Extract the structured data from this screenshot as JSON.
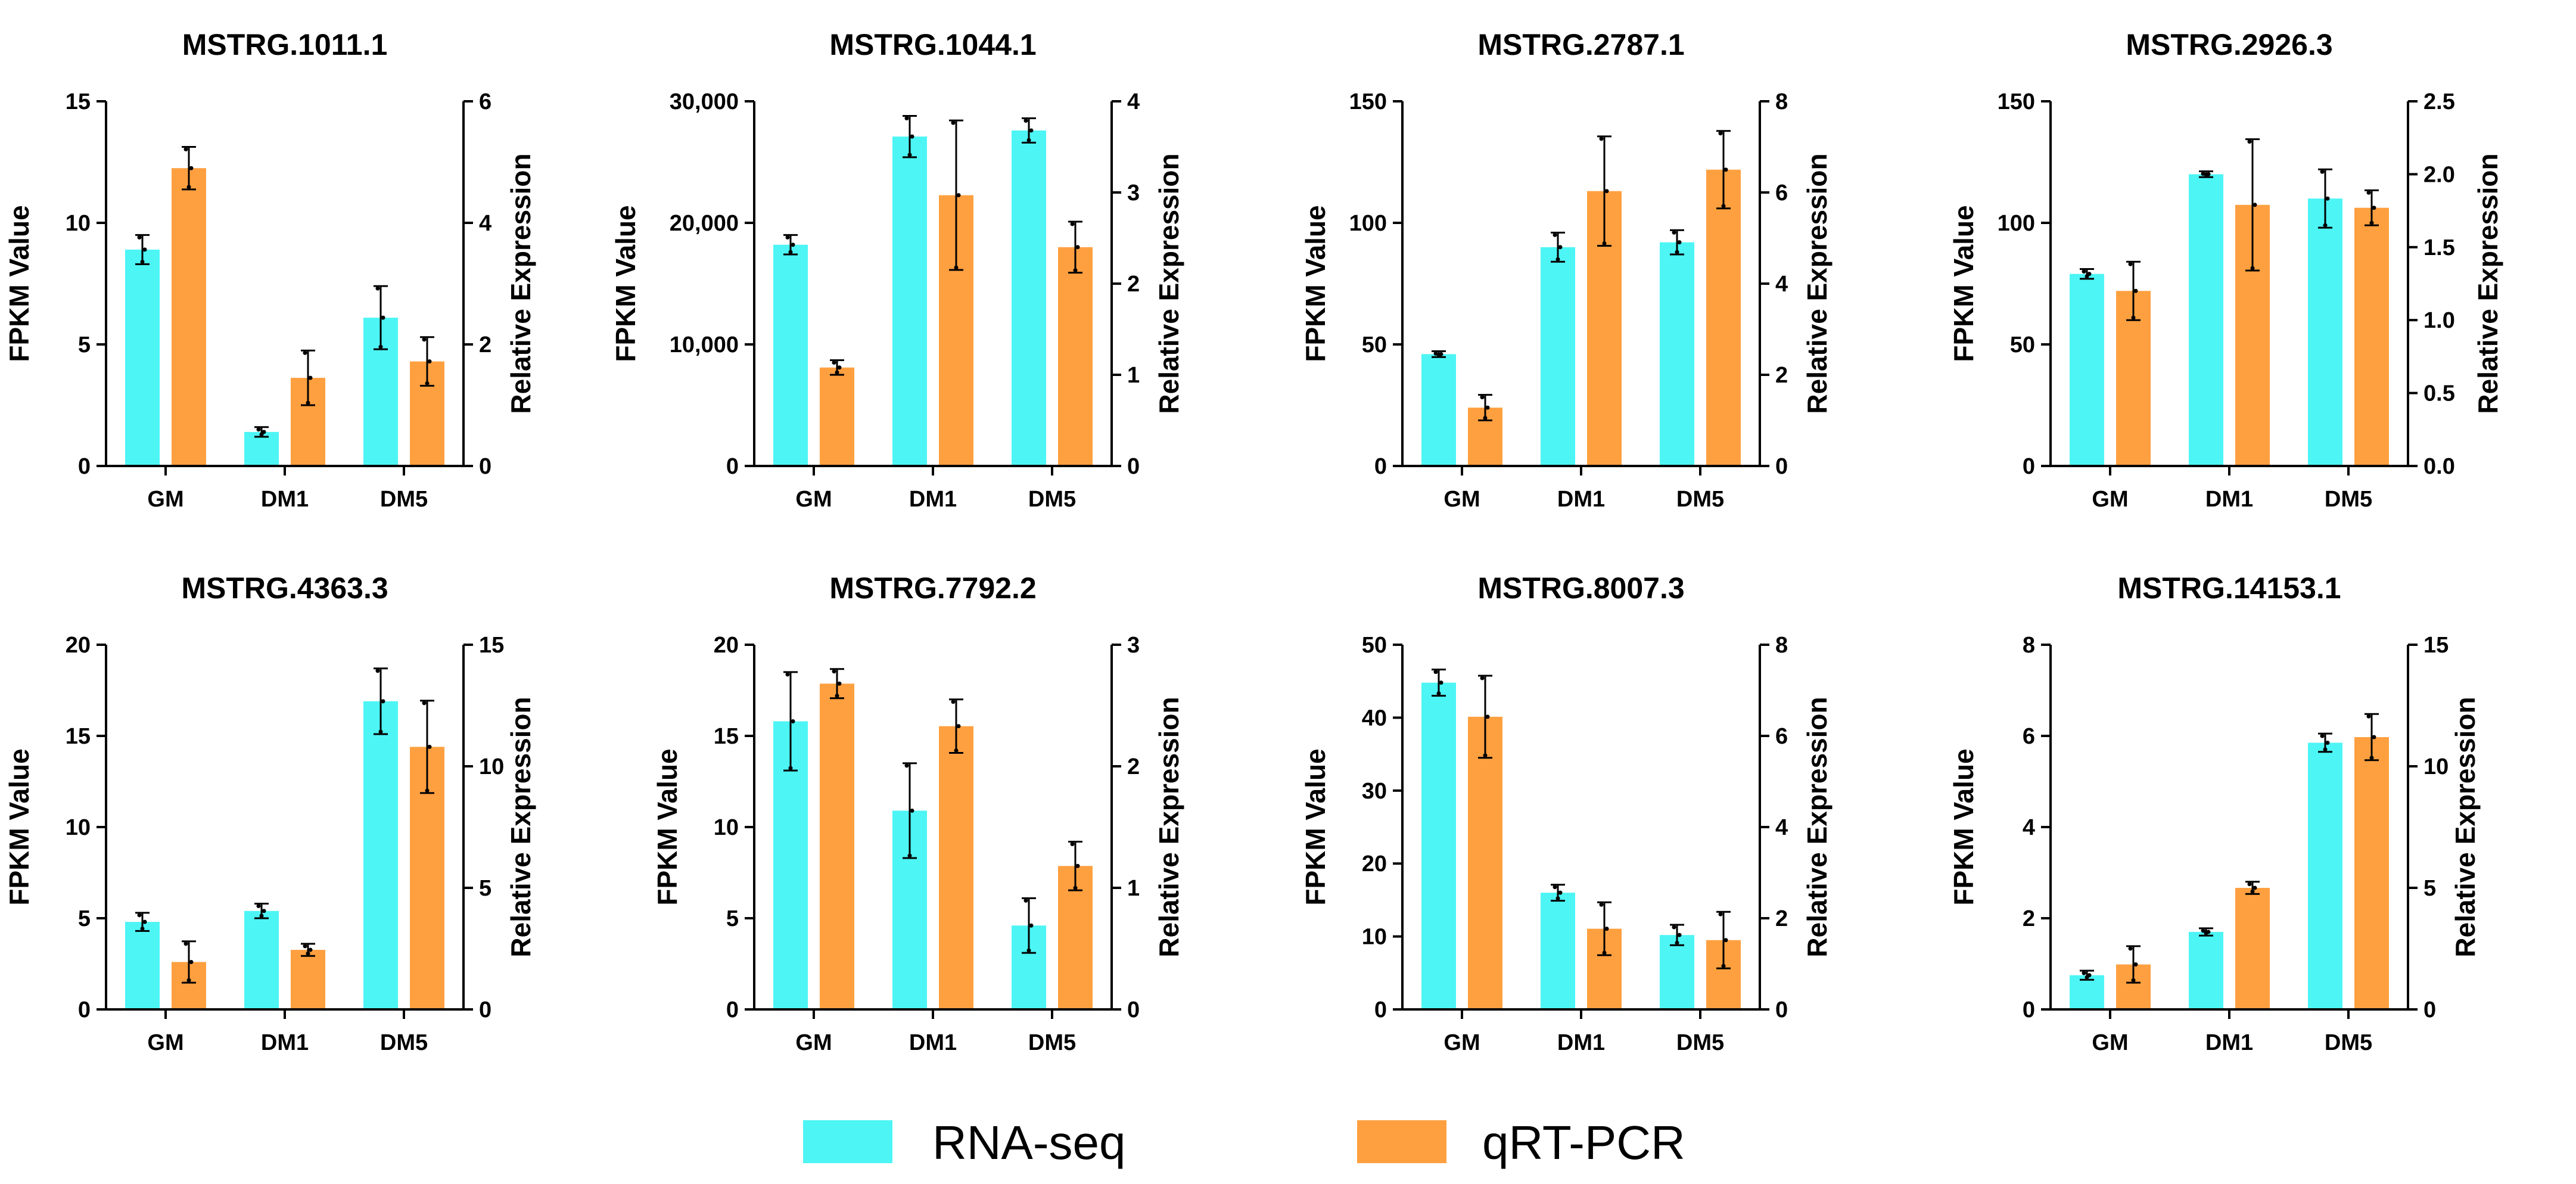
{
  "legend": {
    "rna_label": "RNA-seq",
    "qpcr_label": "qRT-PCR"
  },
  "colors": {
    "rna": "#4DF5F5",
    "qpcr": "#FFA040",
    "axis": "#000000"
  },
  "chart_data": [
    {
      "type": "bar",
      "title": "MSTRG.1011.1",
      "categories": [
        "GM",
        "DM1",
        "DM5"
      ],
      "ylabel": "FPKM Value",
      "y2label": "Relative Expression",
      "ylim": [
        0,
        15
      ],
      "yticks": [
        0,
        5,
        10,
        15
      ],
      "ytick_labels": [
        "0",
        "5",
        "10",
        "15"
      ],
      "y2lim": [
        0,
        6
      ],
      "y2ticks": [
        0,
        2,
        4,
        6
      ],
      "y2tick_labels": [
        "0",
        "2",
        "4",
        "6"
      ],
      "series": [
        {
          "name": "RNA-seq",
          "axis": "left",
          "values": [
            8.9,
            1.4,
            6.1
          ],
          "errors": [
            0.6,
            0.2,
            1.3
          ]
        },
        {
          "name": "qRT-PCR",
          "axis": "right",
          "values": [
            4.9,
            1.45,
            1.72
          ],
          "errors": [
            0.35,
            0.45,
            0.4
          ]
        }
      ]
    },
    {
      "type": "bar",
      "title": "MSTRG.1044.1",
      "categories": [
        "GM",
        "DM1",
        "DM5"
      ],
      "ylabel": "FPKM Value",
      "y2label": "Relative Expression",
      "ylim": [
        0,
        30000
      ],
      "yticks": [
        0,
        10000,
        20000,
        30000
      ],
      "ytick_labels": [
        "0",
        "10,000",
        "20,000",
        "30,000"
      ],
      "y2lim": [
        0,
        4
      ],
      "y2ticks": [
        0,
        1,
        2,
        3,
        4
      ],
      "y2tick_labels": [
        "0",
        "1",
        "2",
        "3",
        "4"
      ],
      "series": [
        {
          "name": "RNA-seq",
          "axis": "left",
          "values": [
            18200,
            27100,
            27600
          ],
          "errors": [
            800,
            1700,
            1000
          ]
        },
        {
          "name": "qRT-PCR",
          "axis": "right",
          "values": [
            1.08,
            2.97,
            2.4
          ],
          "errors": [
            0.08,
            0.82,
            0.28
          ]
        }
      ]
    },
    {
      "type": "bar",
      "title": "MSTRG.2787.1",
      "categories": [
        "GM",
        "DM1",
        "DM5"
      ],
      "ylabel": "FPKM Value",
      "y2label": "Relative Expression",
      "ylim": [
        0,
        150
      ],
      "yticks": [
        0,
        50,
        100,
        150
      ],
      "ytick_labels": [
        "0",
        "50",
        "100",
        "150"
      ],
      "y2lim": [
        0,
        8
      ],
      "y2ticks": [
        0,
        2,
        4,
        6,
        8
      ],
      "y2tick_labels": [
        "0",
        "2",
        "4",
        "6",
        "8"
      ],
      "series": [
        {
          "name": "RNA-seq",
          "axis": "left",
          "values": [
            46,
            90,
            92
          ],
          "errors": [
            1.2,
            6,
            5
          ]
        },
        {
          "name": "qRT-PCR",
          "axis": "right",
          "values": [
            1.28,
            6.03,
            6.5
          ],
          "errors": [
            0.28,
            1.2,
            0.85
          ]
        }
      ]
    },
    {
      "type": "bar",
      "title": "MSTRG.2926.3",
      "categories": [
        "GM",
        "DM1",
        "DM5"
      ],
      "ylabel": "FPKM Value",
      "y2label": "Relative Expression",
      "ylim": [
        0,
        150
      ],
      "yticks": [
        0,
        50,
        100,
        150
      ],
      "ytick_labels": [
        "0",
        "50",
        "100",
        "150"
      ],
      "y2lim": [
        0,
        2.5
      ],
      "y2ticks": [
        0,
        0.5,
        1,
        1.5,
        2,
        2.5
      ],
      "y2tick_labels": [
        "0.0",
        "0.5",
        "1.0",
        "1.5",
        "2.0",
        "2.5"
      ],
      "series": [
        {
          "name": "RNA-seq",
          "axis": "left",
          "values": [
            79,
            120,
            110
          ],
          "errors": [
            2,
            1.2,
            12
          ]
        },
        {
          "name": "qRT-PCR",
          "axis": "right",
          "values": [
            1.2,
            1.79,
            1.77
          ],
          "errors": [
            0.2,
            0.45,
            0.12
          ]
        }
      ]
    },
    {
      "type": "bar",
      "title": "MSTRG.4363.3",
      "categories": [
        "GM",
        "DM1",
        "DM5"
      ],
      "ylabel": "FPKM Value",
      "y2label": "Relative Expression",
      "ylim": [
        0,
        20
      ],
      "yticks": [
        0,
        5,
        10,
        15,
        20
      ],
      "ytick_labels": [
        "0",
        "5",
        "10",
        "15",
        "20"
      ],
      "y2lim": [
        0,
        15
      ],
      "y2ticks": [
        0,
        5,
        10,
        15
      ],
      "y2tick_labels": [
        "0",
        "5",
        "10",
        "15"
      ],
      "series": [
        {
          "name": "RNA-seq",
          "axis": "left",
          "values": [
            4.8,
            5.4,
            16.9
          ],
          "errors": [
            0.5,
            0.4,
            1.8
          ]
        },
        {
          "name": "qRT-PCR",
          "axis": "right",
          "values": [
            1.95,
            2.45,
            10.8
          ],
          "errors": [
            0.85,
            0.25,
            1.9
          ]
        }
      ]
    },
    {
      "type": "bar",
      "title": "MSTRG.7792.2",
      "categories": [
        "GM",
        "DM1",
        "DM5"
      ],
      "ylabel": "FPKM Value",
      "y2label": "Relative Expression",
      "ylim": [
        0,
        20
      ],
      "yticks": [
        0,
        5,
        10,
        15,
        20
      ],
      "ytick_labels": [
        "0",
        "5",
        "10",
        "15",
        "20"
      ],
      "y2lim": [
        0,
        3
      ],
      "y2ticks": [
        0,
        1,
        2,
        3
      ],
      "y2tick_labels": [
        "0",
        "1",
        "2",
        "3"
      ],
      "series": [
        {
          "name": "RNA-seq",
          "axis": "left",
          "values": [
            15.8,
            10.9,
            4.6
          ],
          "errors": [
            2.7,
            2.6,
            1.5
          ]
        },
        {
          "name": "qRT-PCR",
          "axis": "right",
          "values": [
            2.68,
            2.33,
            1.18
          ],
          "errors": [
            0.12,
            0.22,
            0.2
          ]
        }
      ]
    },
    {
      "type": "bar",
      "title": "MSTRG.8007.3",
      "categories": [
        "GM",
        "DM1",
        "DM5"
      ],
      "ylabel": "FPKM Value",
      "y2label": "Relative Expression",
      "ylim": [
        0,
        50
      ],
      "yticks": [
        0,
        10,
        20,
        30,
        40,
        50
      ],
      "ytick_labels": [
        "0",
        "10",
        "20",
        "30",
        "40",
        "50"
      ],
      "y2lim": [
        0,
        8
      ],
      "y2ticks": [
        0,
        2,
        4,
        6,
        8
      ],
      "y2tick_labels": [
        "0",
        "2",
        "4",
        "6",
        "8"
      ],
      "series": [
        {
          "name": "RNA-seq",
          "axis": "left",
          "values": [
            44.8,
            16,
            10.2
          ],
          "errors": [
            1.8,
            1.1,
            1.4
          ]
        },
        {
          "name": "qRT-PCR",
          "axis": "right",
          "values": [
            6.42,
            1.77,
            1.52
          ],
          "errors": [
            0.9,
            0.58,
            0.62
          ]
        }
      ]
    },
    {
      "type": "bar",
      "title": "MSTRG.14153.1",
      "categories": [
        "GM",
        "DM1",
        "DM5"
      ],
      "ylabel": "FPKM Value",
      "y2label": "Relative Expression",
      "ylim": [
        0,
        8
      ],
      "yticks": [
        0,
        2,
        4,
        6,
        8
      ],
      "ytick_labels": [
        "0",
        "2",
        "4",
        "6",
        "8"
      ],
      "y2lim": [
        0,
        15
      ],
      "y2ticks": [
        0,
        5,
        10,
        15
      ],
      "y2tick_labels": [
        "0",
        "5",
        "10",
        "15"
      ],
      "series": [
        {
          "name": "RNA-seq",
          "axis": "left",
          "values": [
            0.75,
            1.7,
            5.85
          ],
          "errors": [
            0.1,
            0.08,
            0.2
          ]
        },
        {
          "name": "qRT-PCR",
          "axis": "right",
          "values": [
            1.85,
            5,
            11.2
          ],
          "errors": [
            0.75,
            0.25,
            0.95
          ]
        }
      ]
    }
  ]
}
